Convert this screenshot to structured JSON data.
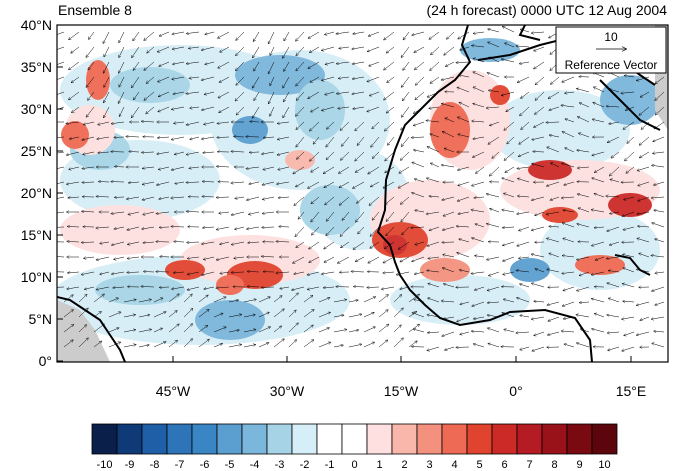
{
  "header": {
    "left_title": "Ensemble 8",
    "right_title": "(24 h forecast) 0000 UTC 12 Aug 2004"
  },
  "map": {
    "lat_labels": [
      "40°N",
      "35°N",
      "30°N",
      "25°N",
      "20°N",
      "15°N",
      "10°N",
      "5°N",
      "0°"
    ],
    "lon_labels": [
      "45°W",
      "30°W",
      "15°W",
      "0°",
      "15°E"
    ]
  },
  "reference_vector": {
    "value": "10",
    "label": "Reference Vector"
  },
  "colorbar": {
    "labels": [
      "-10",
      "-9",
      "-8",
      "-7",
      "-6",
      "-5",
      "-4",
      "-3",
      "-2",
      "-1",
      "0",
      "1",
      "2",
      "3",
      "4",
      "5",
      "6",
      "7",
      "8",
      "9",
      "10"
    ],
    "colors": [
      "#0a1f4a",
      "#0f3a78",
      "#1f5fa8",
      "#2e74b8",
      "#3a86c4",
      "#5a9fd0",
      "#7bb6dc",
      "#a6d4e6",
      "#d6eef7",
      "#ffffff",
      "#ffffff",
      "#fde0df",
      "#f8b7aa",
      "#f4917e",
      "#ef6a54",
      "#e0442f",
      "#cc2a26",
      "#b51b22",
      "#9a1219",
      "#7a0a12",
      "#5c050c"
    ]
  }
}
